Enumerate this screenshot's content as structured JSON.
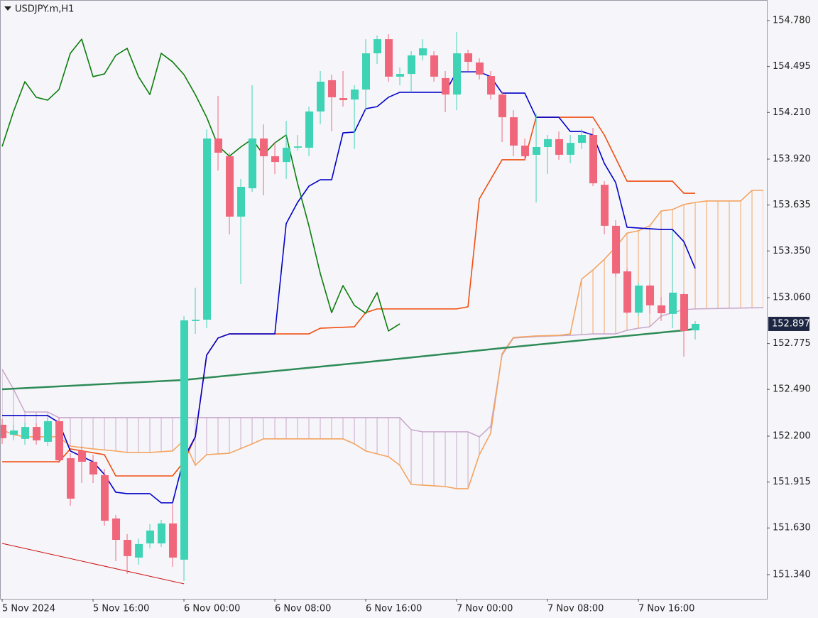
{
  "chart_data": {
    "type": "candlestick",
    "title": "USDJPY.m,H1",
    "xlim": [
      -0.19,
      67.31
    ],
    "ylim": [
      151.19,
      154.908
    ],
    "xticks": [
      {
        "value": 0,
        "label": "5 Nov 2024"
      },
      {
        "value": 8,
        "label": "5 Nov 16:00"
      },
      {
        "value": 16,
        "label": "6 Nov 00:00"
      },
      {
        "value": 24,
        "label": "6 Nov 08:00"
      },
      {
        "value": 32,
        "label": "6 Nov 16:00"
      },
      {
        "value": 40,
        "label": "7 Nov 00:00"
      },
      {
        "value": 48,
        "label": "7 Nov 08:00"
      },
      {
        "value": 56,
        "label": "7 Nov 16:00"
      }
    ],
    "yticks": [
      {
        "value": 154.78,
        "label": "154.780"
      },
      154.495,
      {
        "value": 154.21,
        "label": "154.210"
      },
      {
        "value": 153.92,
        "label": "153.920"
      },
      153.635,
      {
        "value": 153.35,
        "label": "153.350"
      },
      {
        "value": 153.06,
        "label": "153.060"
      },
      152.775,
      {
        "value": 152.49,
        "label": "152.490"
      },
      {
        "value": 152.2,
        "label": "152.200"
      },
      151.915,
      {
        "value": 151.63,
        "label": "151.630"
      },
      {
        "value": 151.34,
        "label": "151.340"
      }
    ],
    "current_price": 152.897,
    "up_color": "#3ed3b5",
    "down_color": "#f0677c",
    "candles": {
      "open": [
        152.271,
        152.209,
        152.183,
        152.257,
        152.165,
        152.293,
        152.063,
        152.108,
        152.041,
        151.958,
        151.689,
        151.556,
        151.446,
        151.534,
        151.534,
        151.658,
        151.433,
        152.915,
        152.923,
        154.048,
        153.938,
        153.563,
        153.739,
        154.048,
        153.938,
        153.902,
        153.991,
        153.991,
        154.216,
        154.41,
        154.299,
        154.29,
        154.352,
        154.577,
        154.665,
        154.432,
        154.449,
        154.564,
        154.564,
        154.423,
        154.321,
        154.577,
        154.52,
        154.436,
        154.321,
        154.18,
        154.004,
        153.947,
        153.995,
        154.044,
        153.947,
        154.021,
        154.07,
        153.761,
        153.506,
        153.223,
        152.967,
        153.135,
        153.012,
        152.959,
        153.082,
        152.857
      ],
      "high": [
        152.306,
        152.271,
        152.284,
        152.28,
        152.315,
        152.315,
        152.094,
        152.138,
        152.085,
        151.997,
        151.711,
        151.592,
        151.565,
        151.653,
        151.68,
        151.777,
        152.945,
        153.122,
        154.105,
        154.313,
        153.96,
        153.797,
        154.379,
        154.136,
        154.026,
        154.158,
        154.07,
        154.246,
        154.467,
        154.445,
        154.467,
        154.379,
        154.665,
        154.687,
        154.696,
        154.489,
        154.59,
        154.665,
        154.59,
        154.467,
        154.709,
        154.599,
        154.546,
        154.467,
        154.343,
        154.224,
        154.048,
        154.202,
        154.07,
        154.092,
        154.07,
        154.105,
        154.114,
        153.783,
        153.541,
        153.241,
        153.153,
        153.144,
        153.065,
        153.475,
        153.091,
        152.915
      ],
      "low": [
        152.152,
        152.174,
        152.147,
        152.147,
        152.138,
        152.033,
        151.768,
        151.909,
        151.909,
        151.644,
        151.424,
        151.345,
        151.402,
        151.503,
        151.512,
        151.389,
        151.301,
        152.835,
        152.87,
        153.849,
        153.453,
        153.144,
        153.717,
        153.695,
        153.827,
        153.797,
        153.973,
        153.938,
        154.136,
        154.092,
        154.246,
        153.982,
        154.224,
        154.511,
        154.401,
        154.379,
        154.335,
        154.533,
        154.401,
        154.211,
        154.224,
        154.467,
        154.414,
        154.29,
        154.026,
        153.938,
        153.916,
        153.651,
        153.827,
        153.916,
        153.894,
        153.982,
        153.752,
        153.453,
        153.188,
        152.959,
        152.945,
        152.959,
        152.915,
        152.87,
        152.694,
        152.8
      ],
      "close": [
        152.187,
        152.235,
        152.257,
        152.174,
        152.293,
        152.05,
        151.812,
        152.041,
        151.962,
        151.675,
        151.556,
        151.455,
        151.53,
        151.614,
        151.658,
        151.446,
        152.919,
        152.923,
        154.048,
        153.96,
        153.563,
        153.748,
        154.048,
        153.938,
        153.902,
        153.991,
        153.999,
        154.216,
        154.401,
        154.304,
        154.286,
        154.352,
        154.577,
        154.665,
        154.432,
        154.449,
        154.564,
        154.608,
        154.432,
        154.321,
        154.577,
        154.524,
        154.445,
        154.321,
        154.18,
        154.004,
        153.938,
        153.995,
        154.044,
        153.947,
        154.021,
        154.07,
        153.77,
        153.506,
        153.21,
        152.967,
        153.135,
        153.012,
        152.963,
        153.091,
        152.853,
        152.897
      ]
    },
    "cloud": {
      "a": {
        "color": "#f4a460",
        "x": [
          0,
          1,
          2,
          5,
          6,
          8,
          10,
          11,
          13,
          15,
          16,
          17,
          18,
          20,
          22,
          23,
          30,
          31,
          32,
          34,
          35,
          36,
          37,
          39,
          40,
          41,
          42,
          43,
          44,
          45,
          47,
          49,
          50,
          51,
          52,
          53,
          54,
          55,
          56,
          57,
          58,
          59,
          60,
          61,
          62,
          65,
          66,
          67
        ],
        "values": [
          152.24,
          152.209,
          152.196,
          152.196,
          152.138,
          152.121,
          152.108,
          152.099,
          152.099,
          152.108,
          152.174,
          152.019,
          152.085,
          152.094,
          152.152,
          152.183,
          152.183,
          152.152,
          152.108,
          152.072,
          152.019,
          151.9,
          151.896,
          151.887,
          151.874,
          151.874,
          152.085,
          152.218,
          152.712,
          152.813,
          152.822,
          152.826,
          152.835,
          153.175,
          153.232,
          153.298,
          153.373,
          153.461,
          153.475,
          153.506,
          153.598,
          153.607,
          153.638,
          153.651,
          153.66,
          153.66,
          153.726,
          153.726
        ]
      },
      "b": {
        "color": "#c9a9cc",
        "x": [
          0,
          1,
          2,
          4,
          5,
          35,
          36,
          37,
          41,
          42,
          43,
          44,
          45,
          47,
          50,
          52,
          54,
          55,
          56,
          57,
          58,
          59,
          60,
          61,
          67
        ],
        "values": [
          152.615,
          152.491,
          152.35,
          152.35,
          152.315,
          152.315,
          152.24,
          152.227,
          152.227,
          152.196,
          152.262,
          152.703,
          152.809,
          152.818,
          152.826,
          152.835,
          152.835,
          152.857,
          152.87,
          152.879,
          152.945,
          152.967,
          152.985,
          152.99,
          152.998
        ]
      }
    },
    "lines": [
      {
        "color": "#2e8b57",
        "width": 2.5,
        "x": [
          0,
          16,
          32,
          44,
          60,
          61
        ],
        "values": [
          152.491,
          152.549,
          152.659,
          152.747,
          152.857,
          152.866
        ]
      },
      {
        "color": "#d01010",
        "width": 1,
        "x": [
          0,
          16
        ],
        "values": [
          151.534,
          151.283
        ]
      },
      {
        "color": "#f04e10",
        "width": 1.6,
        "x": [
          0,
          5,
          6,
          9,
          10,
          15,
          16,
          17,
          18,
          19,
          20,
          27,
          28,
          31,
          32,
          33,
          40,
          41,
          42,
          44,
          46,
          47,
          52,
          53,
          55,
          59,
          60,
          61
        ],
        "values": [
          152.041,
          152.041,
          152.121,
          152.085,
          151.953,
          151.953,
          152.041,
          152.196,
          152.703,
          152.809,
          152.835,
          152.835,
          152.87,
          152.879,
          152.967,
          152.99,
          152.99,
          153.003,
          153.673,
          153.916,
          153.916,
          154.18,
          154.18,
          154.07,
          153.783,
          153.783,
          153.708,
          153.708
        ]
      },
      {
        "color": "#0000c8",
        "width": 1.6,
        "x": [
          0,
          4,
          5,
          6,
          8,
          9,
          10,
          11,
          13,
          14,
          15,
          16,
          17,
          18,
          19,
          20,
          24,
          25,
          26,
          27,
          28,
          29,
          30,
          31,
          32,
          33,
          34,
          35,
          39,
          40,
          42,
          43,
          44,
          46,
          47,
          49,
          50,
          51,
          52,
          53,
          54,
          55,
          58,
          59,
          60,
          61
        ],
        "values": [
          152.328,
          152.328,
          152.284,
          152.108,
          152.041,
          151.962,
          151.852,
          151.843,
          151.843,
          151.786,
          151.786,
          152.063,
          152.196,
          152.703,
          152.809,
          152.835,
          152.835,
          153.519,
          153.651,
          153.752,
          153.792,
          153.792,
          154.083,
          154.088,
          154.233,
          154.246,
          154.304,
          154.335,
          154.335,
          154.462,
          154.462,
          154.432,
          154.33,
          154.33,
          154.18,
          154.18,
          154.092,
          154.092,
          154.07,
          153.894,
          153.775,
          153.497,
          153.483,
          153.483,
          153.408,
          153.241
        ]
      },
      {
        "color": "#0a7d0a",
        "width": 1.6,
        "values": [
          153.999,
          154.216,
          154.401,
          154.304,
          154.286,
          154.352,
          154.577,
          154.665,
          154.432,
          154.449,
          154.564,
          154.608,
          154.432,
          154.321,
          154.577,
          154.524,
          154.445,
          154.321,
          154.18,
          154.004,
          153.938,
          153.995,
          154.044,
          153.947,
          154.021,
          154.07,
          153.77,
          153.506,
          153.21,
          152.967,
          153.135,
          153.012,
          152.963,
          153.091,
          152.853,
          152.897
        ]
      }
    ]
  }
}
